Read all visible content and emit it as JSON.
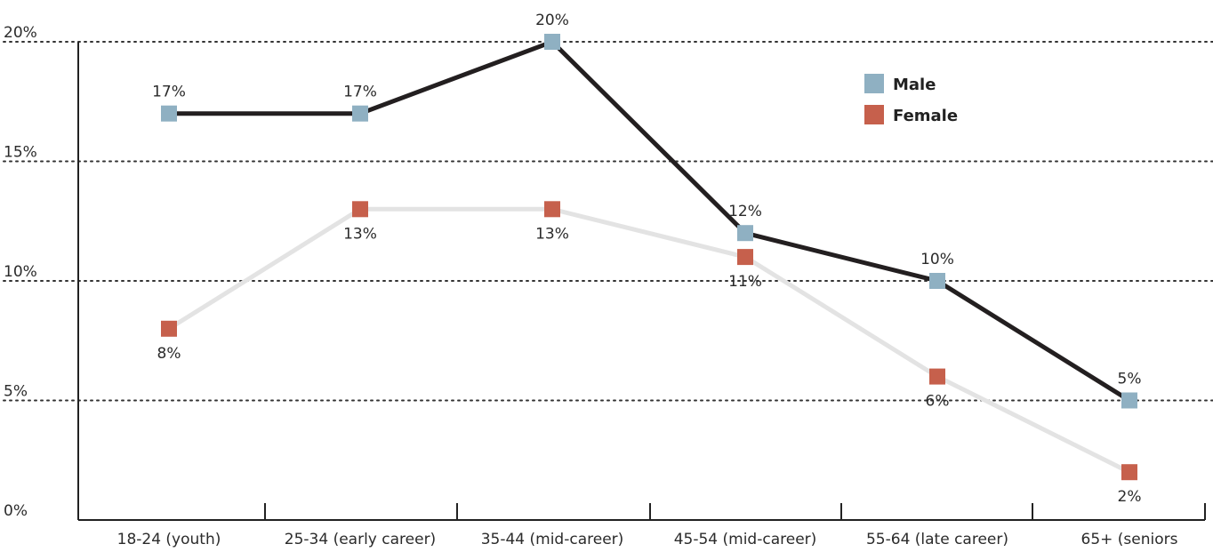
{
  "chart_data": {
    "type": "line",
    "categories": [
      "18-24 (youth)",
      "25-34 (early career)",
      "35-44 (mid-career)",
      "45-54 (mid-career)",
      "55-64 (late career)",
      "65+ (seniors"
    ],
    "series": [
      {
        "name": "Male",
        "values": [
          17,
          17,
          20,
          12,
          10,
          5
        ],
        "labels": [
          "17%",
          "17%",
          "20%",
          "12%",
          "10%",
          "5%"
        ],
        "line_color": "#231f20",
        "marker_color": "#8fb0c2"
      },
      {
        "name": "Female",
        "values": [
          8,
          13,
          13,
          11,
          6,
          2
        ],
        "labels": [
          "8%",
          "13%",
          "13%",
          "11%",
          "6%",
          "2%"
        ],
        "line_color": "#e3e3e3",
        "marker_color": "#c6604c"
      }
    ],
    "yticks": [
      0,
      5,
      10,
      15,
      20
    ],
    "ytick_labels": [
      "0%",
      "5%",
      "10%",
      "15%",
      "20%"
    ],
    "ylim": [
      0,
      20
    ],
    "grid": "dotted horizontal",
    "legend_position": "top-right"
  }
}
